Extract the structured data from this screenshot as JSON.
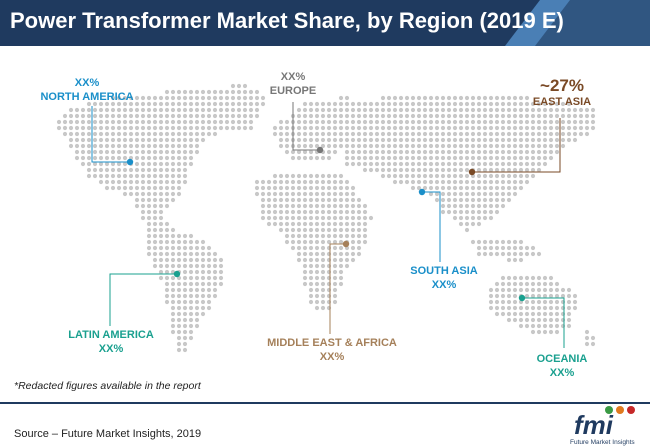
{
  "title": "Power Transformer Market Share, by Region (2019 E)",
  "colors": {
    "title_bg": "#1f3a5f",
    "title_accent": "#4a7fb5",
    "map_dots": "#c8c8c8",
    "north_america": "#1a8fc9",
    "europe": "#777777",
    "east_asia": "#7a4a26",
    "south_asia": "#1a8fc9",
    "latin_america": "#1aa08f",
    "middle_east_africa": "#a5805a",
    "oceania": "#1aa08f"
  },
  "regions": {
    "north_america": {
      "value": "XX%",
      "name": "NORTH AMERICA"
    },
    "europe": {
      "value": "XX%",
      "name": "EUROPE"
    },
    "east_asia": {
      "value": "~27%",
      "name": "EAST ASIA"
    },
    "south_asia": {
      "name": "SOUTH ASIA",
      "value": "XX%"
    },
    "latin_america": {
      "name": "LATIN AMERICA",
      "value": "XX%"
    },
    "middle_east_africa": {
      "name": "MIDDLE EAST & AFRICA",
      "value": "XX%"
    },
    "oceania": {
      "name": "OCEANIA",
      "value": "XX%"
    }
  },
  "note": "*Redacted figures available in the report",
  "source": "Source – Future Market Insights, 2019",
  "logo": {
    "text": "fmi",
    "tagline": "Future Market Insights"
  }
}
